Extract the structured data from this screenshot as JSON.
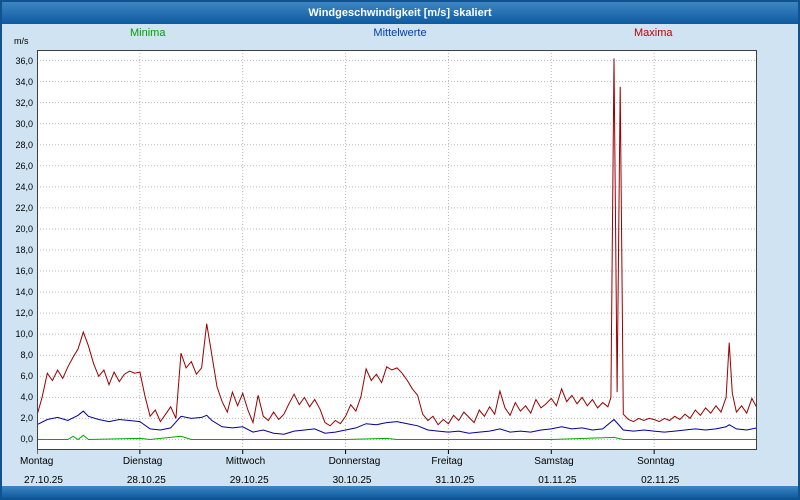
{
  "window": {
    "title": "Windgeschwindigkeit [m/s] skaliert"
  },
  "legend": {
    "minima": {
      "label": "Minima",
      "color": "#00a000"
    },
    "mittelwerte": {
      "label": "Mittelwerte",
      "color": "#0040b0"
    },
    "maxima": {
      "label": "Maxima",
      "color": "#c00000"
    }
  },
  "colors": {
    "background": "#cfe3f2",
    "titlebar": "#1a64ab",
    "plot_border": "#404040",
    "grid": "#b8b8b8"
  },
  "chart_data": {
    "type": "line",
    "title": "Windgeschwindigkeit [m/s] skaliert",
    "xlabel": "",
    "ylabel": "m/s",
    "xlim": [
      0,
      7
    ],
    "ylim": [
      0,
      36
    ],
    "grid": "dotted",
    "legend_position": "top",
    "y_ticks": [
      0,
      2,
      4,
      6,
      8,
      10,
      12,
      14,
      16,
      18,
      20,
      22,
      24,
      26,
      28,
      30,
      32,
      34,
      36
    ],
    "x_ticks": [
      {
        "day": "Montag",
        "date": "27.10.25",
        "x": 0
      },
      {
        "day": "Dienstag",
        "date": "28.10.25",
        "x": 1
      },
      {
        "day": "Mittwoch",
        "date": "29.10.25",
        "x": 2
      },
      {
        "day": "Donnerstag",
        "date": "30.10.25",
        "x": 3
      },
      {
        "day": "Freitag",
        "date": "31.10.25",
        "x": 4
      },
      {
        "day": "Samstag",
        "date": "01.11.25",
        "x": 5
      },
      {
        "day": "Sonntag",
        "date": "02.11.25",
        "x": 6
      }
    ],
    "series": [
      {
        "name": "Maxima",
        "color": "#9a0000",
        "points": [
          [
            0.0,
            2.3
          ],
          [
            0.05,
            4.0
          ],
          [
            0.1,
            6.3
          ],
          [
            0.15,
            5.6
          ],
          [
            0.2,
            6.6
          ],
          [
            0.25,
            5.8
          ],
          [
            0.3,
            6.9
          ],
          [
            0.35,
            7.8
          ],
          [
            0.4,
            8.6
          ],
          [
            0.45,
            10.2
          ],
          [
            0.5,
            8.9
          ],
          [
            0.55,
            7.2
          ],
          [
            0.6,
            6.0
          ],
          [
            0.65,
            6.6
          ],
          [
            0.7,
            5.2
          ],
          [
            0.75,
            6.4
          ],
          [
            0.8,
            5.5
          ],
          [
            0.85,
            6.2
          ],
          [
            0.9,
            6.5
          ],
          [
            0.95,
            6.3
          ],
          [
            1.0,
            6.4
          ],
          [
            1.05,
            4.1
          ],
          [
            1.1,
            2.2
          ],
          [
            1.15,
            2.8
          ],
          [
            1.2,
            1.7
          ],
          [
            1.25,
            2.4
          ],
          [
            1.3,
            3.1
          ],
          [
            1.35,
            2.0
          ],
          [
            1.4,
            8.2
          ],
          [
            1.45,
            6.8
          ],
          [
            1.5,
            7.4
          ],
          [
            1.55,
            6.2
          ],
          [
            1.6,
            6.8
          ],
          [
            1.65,
            11.0
          ],
          [
            1.7,
            8.0
          ],
          [
            1.75,
            5.0
          ],
          [
            1.8,
            3.6
          ],
          [
            1.85,
            2.6
          ],
          [
            1.9,
            4.5
          ],
          [
            1.95,
            3.2
          ],
          [
            2.0,
            4.4
          ],
          [
            2.05,
            2.8
          ],
          [
            2.1,
            1.6
          ],
          [
            2.15,
            4.2
          ],
          [
            2.2,
            2.2
          ],
          [
            2.25,
            1.8
          ],
          [
            2.3,
            2.6
          ],
          [
            2.35,
            1.9
          ],
          [
            2.4,
            2.4
          ],
          [
            2.45,
            3.4
          ],
          [
            2.5,
            4.3
          ],
          [
            2.55,
            3.3
          ],
          [
            2.6,
            4.0
          ],
          [
            2.65,
            3.1
          ],
          [
            2.7,
            3.8
          ],
          [
            2.75,
            2.9
          ],
          [
            2.8,
            1.6
          ],
          [
            2.85,
            1.3
          ],
          [
            2.9,
            1.8
          ],
          [
            2.95,
            1.5
          ],
          [
            3.0,
            2.2
          ],
          [
            3.05,
            3.3
          ],
          [
            3.1,
            2.7
          ],
          [
            3.15,
            4.1
          ],
          [
            3.2,
            6.7
          ],
          [
            3.25,
            5.6
          ],
          [
            3.3,
            6.2
          ],
          [
            3.35,
            5.4
          ],
          [
            3.4,
            6.9
          ],
          [
            3.45,
            6.6
          ],
          [
            3.5,
            6.8
          ],
          [
            3.55,
            6.3
          ],
          [
            3.6,
            5.6
          ],
          [
            3.65,
            4.8
          ],
          [
            3.7,
            4.2
          ],
          [
            3.75,
            2.4
          ],
          [
            3.8,
            1.8
          ],
          [
            3.85,
            2.2
          ],
          [
            3.9,
            1.4
          ],
          [
            3.95,
            1.9
          ],
          [
            4.0,
            1.5
          ],
          [
            4.05,
            2.3
          ],
          [
            4.1,
            1.8
          ],
          [
            4.15,
            2.6
          ],
          [
            4.2,
            2.1
          ],
          [
            4.25,
            1.6
          ],
          [
            4.3,
            2.8
          ],
          [
            4.35,
            2.2
          ],
          [
            4.4,
            3.1
          ],
          [
            4.45,
            2.4
          ],
          [
            4.5,
            4.6
          ],
          [
            4.55,
            3.0
          ],
          [
            4.6,
            2.3
          ],
          [
            4.65,
            3.5
          ],
          [
            4.7,
            2.7
          ],
          [
            4.75,
            3.2
          ],
          [
            4.8,
            2.5
          ],
          [
            4.85,
            3.8
          ],
          [
            4.9,
            3.0
          ],
          [
            4.95,
            3.4
          ],
          [
            5.0,
            3.9
          ],
          [
            5.05,
            3.2
          ],
          [
            5.1,
            4.8
          ],
          [
            5.15,
            3.6
          ],
          [
            5.2,
            4.2
          ],
          [
            5.25,
            3.4
          ],
          [
            5.3,
            4.0
          ],
          [
            5.35,
            3.2
          ],
          [
            5.4,
            3.8
          ],
          [
            5.45,
            3.0
          ],
          [
            5.5,
            3.5
          ],
          [
            5.55,
            3.1
          ],
          [
            5.58,
            4.0
          ],
          [
            5.61,
            36.2
          ],
          [
            5.64,
            4.5
          ],
          [
            5.67,
            33.5
          ],
          [
            5.7,
            2.4
          ],
          [
            5.75,
            1.9
          ],
          [
            5.8,
            1.7
          ],
          [
            5.85,
            2.0
          ],
          [
            5.9,
            1.8
          ],
          [
            5.95,
            2.0
          ],
          [
            6.0,
            1.9
          ],
          [
            6.05,
            1.7
          ],
          [
            6.1,
            2.0
          ],
          [
            6.15,
            1.8
          ],
          [
            6.2,
            2.2
          ],
          [
            6.25,
            1.9
          ],
          [
            6.3,
            2.4
          ],
          [
            6.35,
            2.0
          ],
          [
            6.4,
            2.8
          ],
          [
            6.45,
            2.3
          ],
          [
            6.5,
            3.0
          ],
          [
            6.55,
            2.5
          ],
          [
            6.6,
            3.2
          ],
          [
            6.65,
            2.6
          ],
          [
            6.7,
            4.0
          ],
          [
            6.73,
            9.2
          ],
          [
            6.76,
            4.4
          ],
          [
            6.8,
            2.6
          ],
          [
            6.85,
            3.2
          ],
          [
            6.9,
            2.5
          ],
          [
            6.95,
            3.9
          ],
          [
            7.0,
            3.0
          ]
        ]
      },
      {
        "name": "Mittelwerte",
        "color": "#0000a0",
        "points": [
          [
            0.0,
            1.4
          ],
          [
            0.1,
            1.9
          ],
          [
            0.2,
            2.1
          ],
          [
            0.3,
            1.8
          ],
          [
            0.4,
            2.3
          ],
          [
            0.45,
            2.7
          ],
          [
            0.5,
            2.2
          ],
          [
            0.6,
            1.9
          ],
          [
            0.7,
            1.7
          ],
          [
            0.8,
            1.9
          ],
          [
            0.9,
            1.8
          ],
          [
            1.0,
            1.7
          ],
          [
            1.1,
            1.0
          ],
          [
            1.2,
            0.9
          ],
          [
            1.3,
            1.1
          ],
          [
            1.4,
            2.2
          ],
          [
            1.5,
            2.0
          ],
          [
            1.6,
            2.1
          ],
          [
            1.65,
            2.3
          ],
          [
            1.7,
            1.8
          ],
          [
            1.8,
            1.2
          ],
          [
            1.9,
            1.1
          ],
          [
            2.0,
            1.2
          ],
          [
            2.1,
            0.7
          ],
          [
            2.2,
            0.9
          ],
          [
            2.3,
            0.6
          ],
          [
            2.4,
            0.5
          ],
          [
            2.5,
            0.8
          ],
          [
            2.6,
            0.9
          ],
          [
            2.7,
            1.0
          ],
          [
            2.8,
            0.6
          ],
          [
            2.9,
            0.7
          ],
          [
            3.0,
            0.9
          ],
          [
            3.1,
            1.1
          ],
          [
            3.2,
            1.5
          ],
          [
            3.3,
            1.4
          ],
          [
            3.4,
            1.6
          ],
          [
            3.5,
            1.7
          ],
          [
            3.6,
            1.5
          ],
          [
            3.7,
            1.3
          ],
          [
            3.8,
            0.9
          ],
          [
            3.9,
            0.8
          ],
          [
            4.0,
            0.7
          ],
          [
            4.1,
            0.8
          ],
          [
            4.2,
            0.6
          ],
          [
            4.3,
            0.7
          ],
          [
            4.4,
            0.8
          ],
          [
            4.5,
            1.0
          ],
          [
            4.6,
            0.7
          ],
          [
            4.7,
            0.8
          ],
          [
            4.8,
            0.7
          ],
          [
            4.9,
            0.9
          ],
          [
            5.0,
            1.0
          ],
          [
            5.1,
            1.2
          ],
          [
            5.2,
            1.0
          ],
          [
            5.3,
            1.1
          ],
          [
            5.4,
            0.9
          ],
          [
            5.5,
            1.0
          ],
          [
            5.61,
            1.9
          ],
          [
            5.7,
            0.9
          ],
          [
            5.8,
            0.8
          ],
          [
            5.9,
            0.9
          ],
          [
            6.0,
            0.8
          ],
          [
            6.1,
            0.7
          ],
          [
            6.2,
            0.8
          ],
          [
            6.3,
            0.9
          ],
          [
            6.4,
            1.0
          ],
          [
            6.5,
            0.9
          ],
          [
            6.6,
            1.0
          ],
          [
            6.7,
            1.2
          ],
          [
            6.73,
            1.4
          ],
          [
            6.8,
            1.0
          ],
          [
            6.9,
            0.9
          ],
          [
            7.0,
            1.1
          ]
        ]
      },
      {
        "name": "Minima",
        "color": "#00a800",
        "points": [
          [
            0.0,
            0.0
          ],
          [
            0.3,
            0.0
          ],
          [
            0.35,
            0.3
          ],
          [
            0.4,
            0.0
          ],
          [
            0.45,
            0.4
          ],
          [
            0.5,
            0.0
          ],
          [
            1.0,
            0.1
          ],
          [
            1.1,
            0.0
          ],
          [
            1.4,
            0.3
          ],
          [
            1.5,
            0.0
          ],
          [
            2.0,
            0.0
          ],
          [
            3.0,
            0.0
          ],
          [
            3.4,
            0.1
          ],
          [
            3.5,
            0.0
          ],
          [
            4.0,
            0.0
          ],
          [
            5.0,
            0.0
          ],
          [
            5.61,
            0.2
          ],
          [
            5.7,
            0.0
          ],
          [
            6.0,
            0.0
          ],
          [
            7.0,
            0.0
          ]
        ]
      }
    ]
  }
}
